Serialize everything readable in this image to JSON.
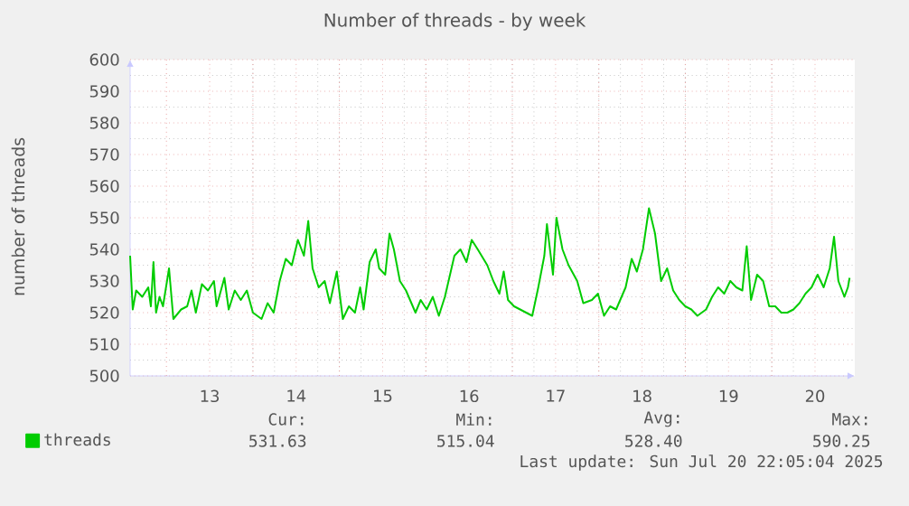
{
  "chart_data": {
    "type": "line",
    "title": "Number of threads - by week",
    "ylabel": "number of threads",
    "x": [
      12.58,
      12.61,
      12.65,
      12.72,
      12.79,
      12.82,
      12.85,
      12.88,
      12.92,
      12.96,
      13.03,
      13.08,
      13.17,
      13.24,
      13.29,
      13.34,
      13.41,
      13.48,
      13.55,
      13.58,
      13.67,
      13.72,
      13.79,
      13.86,
      13.93,
      14.0,
      14.1,
      14.17,
      14.24,
      14.31,
      14.38,
      14.45,
      14.52,
      14.59,
      14.64,
      14.69,
      14.76,
      14.83,
      14.89,
      14.97,
      15.04,
      15.11,
      15.18,
      15.24,
      15.28,
      15.35,
      15.42,
      15.46,
      15.53,
      15.58,
      15.63,
      15.7,
      15.77,
      15.88,
      15.94,
      16.01,
      16.08,
      16.15,
      16.22,
      16.33,
      16.4,
      16.47,
      16.53,
      16.6,
      16.71,
      16.78,
      16.85,
      16.9,
      16.95,
      17.02,
      17.09,
      17.16,
      17.23,
      17.3,
      17.37,
      17.4,
      17.47,
      17.51,
      17.58,
      17.65,
      17.75,
      17.82,
      17.92,
      17.99,
      18.06,
      18.13,
      18.2,
      18.31,
      18.38,
      18.44,
      18.51,
      18.58,
      18.65,
      18.72,
      18.79,
      18.86,
      18.93,
      19.0,
      19.07,
      19.14,
      19.24,
      19.31,
      19.38,
      19.45,
      19.52,
      19.59,
      19.66,
      19.71,
      19.76,
      19.83,
      19.9,
      19.97,
      20.04,
      20.11,
      20.18,
      20.25,
      20.32,
      20.39,
      20.46,
      20.53,
      20.6,
      20.67,
      20.72,
      20.77,
      20.84,
      20.88,
      20.9
    ],
    "series": [
      {
        "name": "threads",
        "color": "#00cc00",
        "values": [
          538,
          521,
          527,
          525,
          528,
          522,
          536,
          520,
          525,
          522,
          534,
          518,
          521,
          522,
          527,
          520,
          529,
          527,
          530,
          522,
          531,
          521,
          527,
          524,
          527,
          520,
          518,
          523,
          520,
          530,
          537,
          535,
          543,
          538,
          549,
          534,
          528,
          530,
          523,
          533,
          518,
          522,
          520,
          528,
          521,
          536,
          540,
          534,
          532,
          545,
          540,
          530,
          527,
          520,
          524,
          521,
          525,
          519,
          525,
          538,
          540,
          536,
          543,
          540,
          535,
          530,
          526,
          533,
          524,
          522,
          521,
          520,
          519,
          528,
          538,
          548,
          532,
          550,
          540,
          535,
          530,
          523,
          524,
          526,
          519,
          522,
          521,
          528,
          537,
          533,
          540,
          553,
          545,
          530,
          534,
          527,
          524,
          522,
          521,
          519,
          521,
          525,
          528,
          526,
          530,
          528,
          527,
          541,
          524,
          532,
          530,
          522,
          522,
          520,
          520,
          521,
          523,
          526,
          528,
          532,
          528,
          534,
          544,
          530,
          525,
          528,
          531
        ]
      }
    ],
    "xlim": [
      12.58,
      20.96
    ],
    "xticks": [
      {
        "value": 13.5,
        "label": "13"
      },
      {
        "value": 14.5,
        "label": "14"
      },
      {
        "value": 15.5,
        "label": "15"
      },
      {
        "value": 16.5,
        "label": "16"
      },
      {
        "value": 17.5,
        "label": "17"
      },
      {
        "value": 18.5,
        "label": "18"
      },
      {
        "value": 19.5,
        "label": "19"
      },
      {
        "value": 20.5,
        "label": "20"
      }
    ],
    "ylim": [
      500,
      600
    ],
    "yticks": [
      500,
      510,
      520,
      530,
      540,
      550,
      560,
      570,
      580,
      590,
      600
    ],
    "grid": true,
    "legend": "bottom left",
    "annotations": [
      "Cur:",
      "531.63",
      "Min:",
      "515.04",
      "Avg:",
      "528.40",
      "Max:",
      "590.25",
      "Last update: Sun Jul 20 22:05:04 2025"
    ]
  }
}
